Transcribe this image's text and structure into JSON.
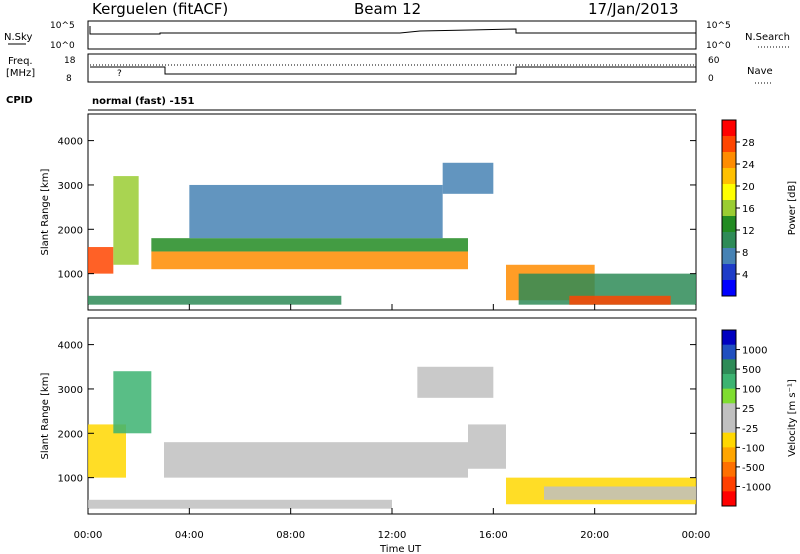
{
  "header": {
    "station": "Kerguelen (fitACF)",
    "beam": "Beam 12",
    "date": "17/Jan/2013"
  },
  "top_panels": {
    "nsky_label": "N.Sky",
    "nsearch_label": "N.Search",
    "nsky_ticks": [
      "10^5",
      "10^0"
    ],
    "nsearch_ticks": [
      "10^5",
      "10^0"
    ],
    "freq_label_line1": "Freq.",
    "freq_label_line2": "[MHz]",
    "freq_ticks": [
      "18",
      "8"
    ],
    "nave_label": "Nave",
    "nave_ticks": [
      "60",
      "0"
    ],
    "cpid_label": "CPID",
    "cpid_text": "normal (fast) -151",
    "freq_marker": "?"
  },
  "power_colorbar": {
    "label": "Power [dB]",
    "ticks": [
      "28",
      "24",
      "20",
      "16",
      "12",
      "8",
      "4"
    ],
    "colors": [
      "#ff0000",
      "#ff4500",
      "#ff8c00",
      "#ffc000",
      "#ffff00",
      "#9acd32",
      "#228b22",
      "#2e8b57",
      "#4682b4",
      "#1e3cc8",
      "#0000ff"
    ]
  },
  "velocity_colorbar": {
    "label": "Velocity [m s⁻¹]",
    "ticks": [
      "1000",
      "500",
      "100",
      "25",
      "-25",
      "-100",
      "-500",
      "-1000"
    ],
    "colors": [
      "#0000c0",
      "#2050c0",
      "#2e8b57",
      "#3cb371",
      "#7fdd30",
      "#c0c0c0",
      "#c0c0c0",
      "#ffd700",
      "#ffa500",
      "#ff7000",
      "#ff4000",
      "#ff0000"
    ]
  },
  "chart_data": [
    {
      "type": "heatmap",
      "name": "power",
      "ylabel": "Slant Range [km]",
      "xlabel": "",
      "xlim": [
        "00:00",
        "24:00"
      ],
      "ylim": [
        180,
        4600
      ],
      "yticks": [
        1000,
        2000,
        3000,
        4000
      ],
      "zlabel": "Power [dB]",
      "zlim": [
        0,
        30
      ],
      "patches": [
        {
          "t0": 0.0,
          "t1": 1.0,
          "r0": 1000,
          "r1": 1600,
          "value": 26
        },
        {
          "t0": 1.0,
          "t1": 2.0,
          "r0": 1200,
          "r1": 3200,
          "value": 14
        },
        {
          "t0": 2.5,
          "t1": 15.0,
          "r0": 1100,
          "r1": 1500,
          "value": 25
        },
        {
          "t0": 2.5,
          "t1": 15.0,
          "r0": 1500,
          "r1": 1800,
          "value": 13
        },
        {
          "t0": 4.0,
          "t1": 14.0,
          "r0": 1800,
          "r1": 3000,
          "value": 6
        },
        {
          "t0": 16.5,
          "t1": 20.0,
          "r0": 400,
          "r1": 1200,
          "value": 24
        },
        {
          "t0": 17.0,
          "t1": 24.0,
          "r0": 300,
          "r1": 1000,
          "value": 8
        },
        {
          "t0": 19.0,
          "t1": 23.0,
          "r0": 300,
          "r1": 500,
          "value": 27
        },
        {
          "t0": 0.0,
          "t1": 10.0,
          "r0": 300,
          "r1": 500,
          "value": 10
        },
        {
          "t0": 14.0,
          "t1": 16.0,
          "r0": 2800,
          "r1": 3500,
          "value": 5
        }
      ]
    },
    {
      "type": "heatmap",
      "name": "velocity",
      "ylabel": "Slant Range [km]",
      "xlabel": "Time UT",
      "xlim": [
        "00:00",
        "24:00"
      ],
      "ylim": [
        180,
        4600
      ],
      "yticks": [
        1000,
        2000,
        3000,
        4000
      ],
      "xticks": [
        "00:00",
        "04:00",
        "08:00",
        "12:00",
        "16:00",
        "20:00",
        "00:00"
      ],
      "zlabel": "Velocity [m s⁻¹]",
      "zlim": [
        -1000,
        1000
      ],
      "patches": [
        {
          "t0": 0.0,
          "t1": 1.5,
          "r0": 1000,
          "r1": 2200,
          "value": -300
        },
        {
          "t0": 1.0,
          "t1": 2.5,
          "r0": 2000,
          "r1": 3400,
          "value": 400
        },
        {
          "t0": 3.0,
          "t1": 15.0,
          "r0": 1000,
          "r1": 1800,
          "value": 0
        },
        {
          "t0": 15.0,
          "t1": 16.5,
          "r0": 1200,
          "r1": 2200,
          "value": 150
        },
        {
          "t0": 16.5,
          "t1": 24.0,
          "r0": 400,
          "r1": 1000,
          "value": -200
        },
        {
          "t0": 18.0,
          "t1": 24.0,
          "r0": 500,
          "r1": 800,
          "value": 0
        },
        {
          "t0": 0.0,
          "t1": 12.0,
          "r0": 300,
          "r1": 500,
          "value": 0
        },
        {
          "t0": 13.0,
          "t1": 16.0,
          "r0": 2800,
          "r1": 3500,
          "value": -100
        }
      ]
    }
  ]
}
